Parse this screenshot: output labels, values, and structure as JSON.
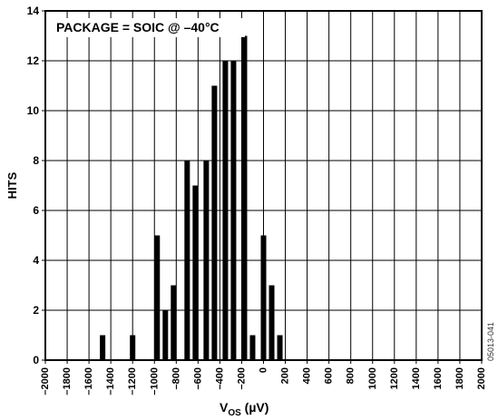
{
  "chart_data": {
    "type": "bar",
    "xlabel_main": "V",
    "xlabel_sub": "OS",
    "xlabel_unit": " (µV)",
    "ylabel": "HITS",
    "annotation": "PACKAGE = SOIC @ –40°C",
    "side_code": "05013-041",
    "xlim": [
      -2000,
      2000
    ],
    "ylim": [
      0,
      14
    ],
    "x_ticks": [
      -2000,
      -1800,
      -1600,
      -1400,
      -1200,
      -1000,
      -800,
      -600,
      -400,
      -200,
      0,
      200,
      400,
      600,
      800,
      1000,
      1200,
      1400,
      1600,
      1800,
      2000
    ],
    "x_tick_labels": [
      "–2000",
      "–1800",
      "–1600",
      "–1400",
      "–1200",
      "–1000",
      "–800",
      "–600",
      "–400",
      "–200",
      "0",
      "200",
      "400",
      "600",
      "800",
      "1000",
      "1200",
      "1400",
      "1600",
      "1800",
      "2000"
    ],
    "y_ticks": [
      0,
      2,
      4,
      6,
      8,
      10,
      12,
      14
    ],
    "grid": true,
    "bars": [
      {
        "x": -1475,
        "value": 1
      },
      {
        "x": -1200,
        "value": 1
      },
      {
        "x": -975,
        "value": 5
      },
      {
        "x": -900,
        "value": 2
      },
      {
        "x": -825,
        "value": 3
      },
      {
        "x": -700,
        "value": 8
      },
      {
        "x": -625,
        "value": 7
      },
      {
        "x": -525,
        "value": 8
      },
      {
        "x": -450,
        "value": 11
      },
      {
        "x": -350,
        "value": 12
      },
      {
        "x": -275,
        "value": 12
      },
      {
        "x": -175,
        "value": 13
      },
      {
        "x": -100,
        "value": 1
      },
      {
        "x": 0,
        "value": 5
      },
      {
        "x": 75,
        "value": 3
      },
      {
        "x": 150,
        "value": 1
      }
    ]
  }
}
